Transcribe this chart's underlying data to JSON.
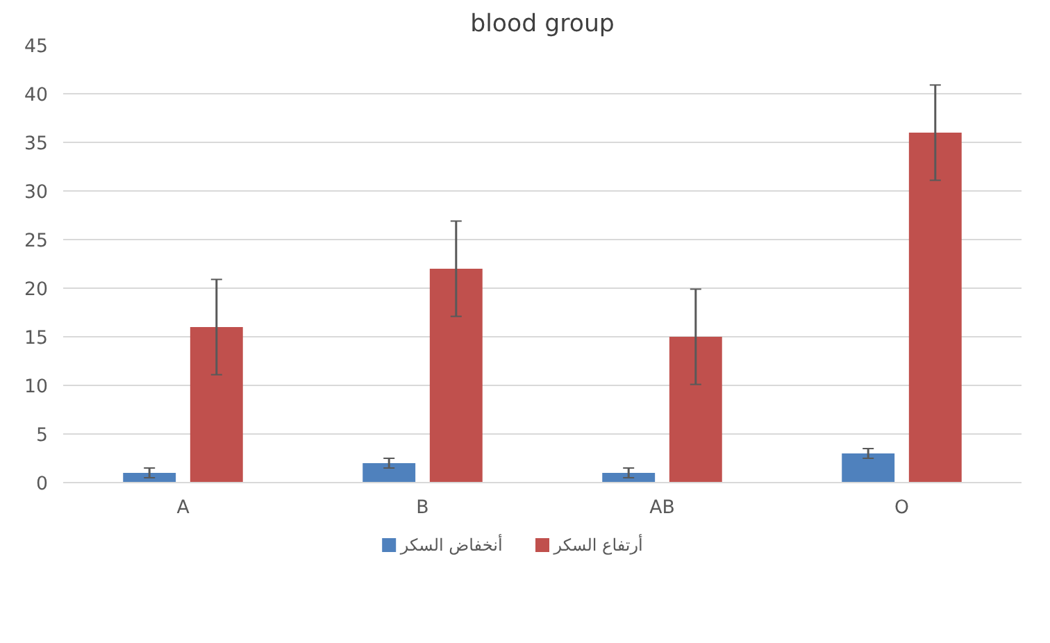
{
  "chart_data": {
    "type": "bar",
    "title": "blood group",
    "categories": [
      "A",
      "B",
      "AB",
      "O"
    ],
    "series": [
      {
        "name": "أنخفاض السكر",
        "color": "#4f81bd",
        "values": [
          1,
          2,
          1,
          3
        ],
        "errors": [
          0.5,
          0.5,
          0.5,
          0.5
        ]
      },
      {
        "name": "أرتفاع السكر",
        "color": "#c0504d",
        "values": [
          16,
          22,
          15,
          36
        ],
        "errors": [
          4.9,
          4.9,
          4.9,
          4.9
        ]
      }
    ],
    "ylim": [
      0,
      45
    ],
    "yticks": [
      0,
      5,
      10,
      15,
      20,
      25,
      30,
      35,
      40,
      45
    ],
    "grid": "y",
    "legend": "bottom"
  }
}
